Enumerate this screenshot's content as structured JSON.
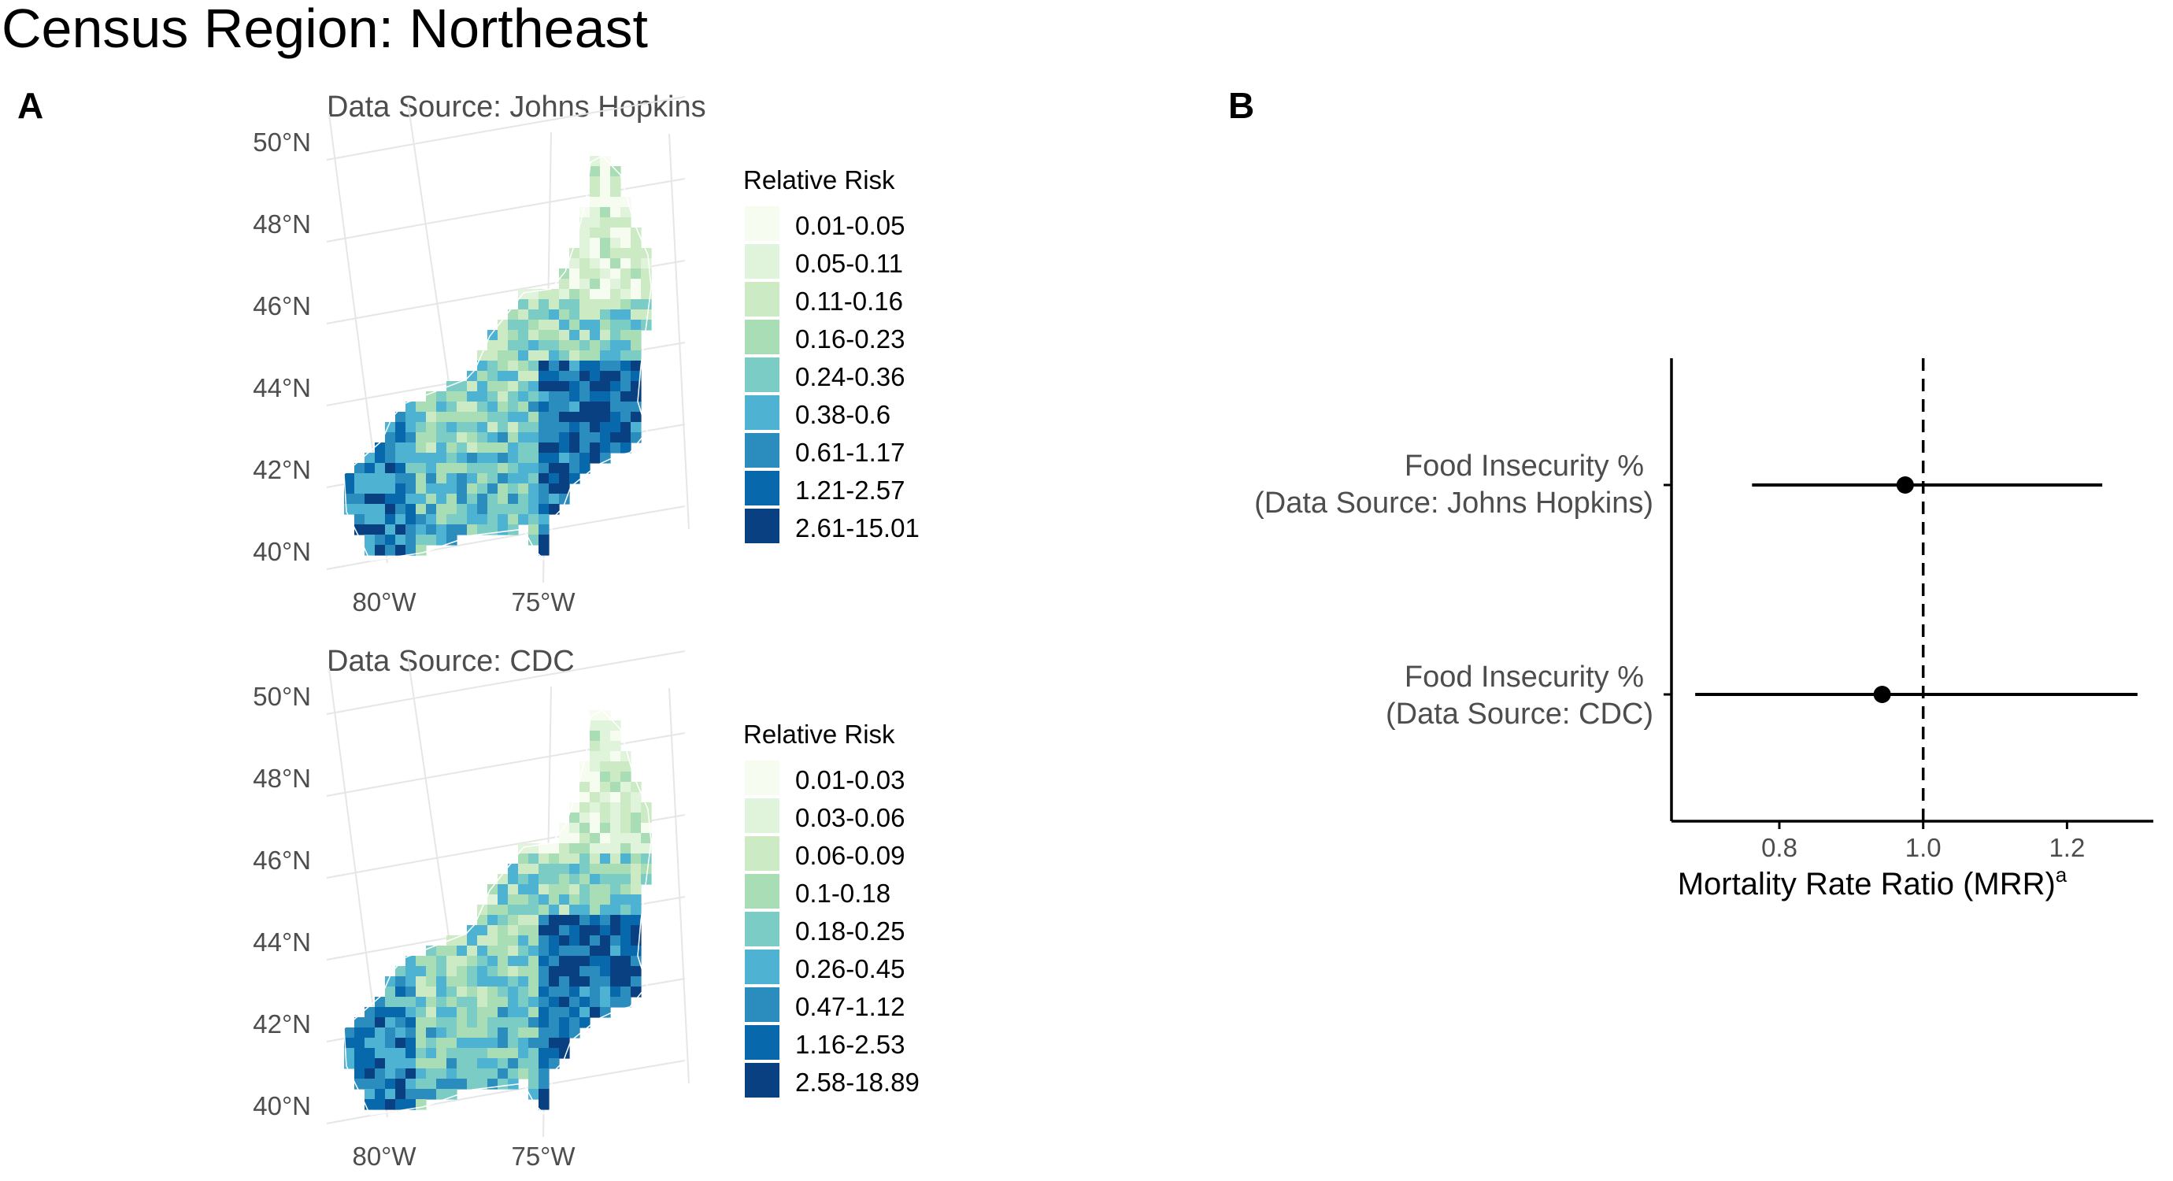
{
  "figure_title": "Census Region: Northeast",
  "panel_labels": [
    "A",
    "B"
  ],
  "colors": {
    "scale": [
      "#f7fcf0",
      "#e0f3db",
      "#ccebc5",
      "#a8ddb5",
      "#7bccc4",
      "#4eb3d3",
      "#2b8cbe",
      "#0868ac",
      "#084081"
    ],
    "point": "#000000",
    "axis": "#000000",
    "tick_text": "#4d4d4d",
    "graticule": "#e6e6e6"
  },
  "maps": [
    {
      "subtitle": "Data Source: Johns Hopkins",
      "lat_labels": [
        "50°N",
        "48°N",
        "46°N",
        "44°N",
        "42°N",
        "40°N"
      ],
      "lon_labels": [
        "80°W",
        "75°W"
      ],
      "legend": {
        "title": "Relative Risk",
        "items": [
          "0.01-0.05",
          "0.05-0.11",
          "0.11-0.16",
          "0.16-0.23",
          "0.24-0.36",
          "0.38-0.6",
          "0.61-1.17",
          "1.21-2.57",
          "2.61-15.01"
        ]
      }
    },
    {
      "subtitle": "Data Source: CDC",
      "lat_labels": [
        "50°N",
        "48°N",
        "46°N",
        "44°N",
        "42°N",
        "40°N"
      ],
      "lon_labels": [
        "80°W",
        "75°W"
      ],
      "legend": {
        "title": "Relative Risk",
        "items": [
          "0.01-0.03",
          "0.03-0.06",
          "0.06-0.09",
          "0.1-0.18",
          "0.18-0.25",
          "0.26-0.45",
          "0.47-1.12",
          "1.16-2.53",
          "2.58-18.89"
        ]
      }
    }
  ],
  "chart_data": {
    "type": "scatter",
    "subtype": "forest-plot",
    "categories": [
      "Food Insecurity %\n(Data Source: Johns Hopkins)",
      "Food Insecurity %\n(Data Source: CDC)"
    ],
    "category_lines": [
      [
        "Food Insecurity %",
        "(Data Source: Johns Hopkins)"
      ],
      [
        "Food Insecurity %",
        "(Data Source: CDC)"
      ]
    ],
    "estimates": [
      0.975,
      0.943
    ],
    "ci_lower": [
      0.762,
      0.683
    ],
    "ci_upper": [
      1.249,
      1.298
    ],
    "reference_line": 1.0,
    "xlim": [
      0.65,
      1.32
    ],
    "x_ticks": [
      "0.8",
      "1.0",
      "1.2"
    ],
    "xlabel": "Mortality Rate Ratio (MRR)",
    "xlabel_superscript": "a",
    "grid": false
  }
}
